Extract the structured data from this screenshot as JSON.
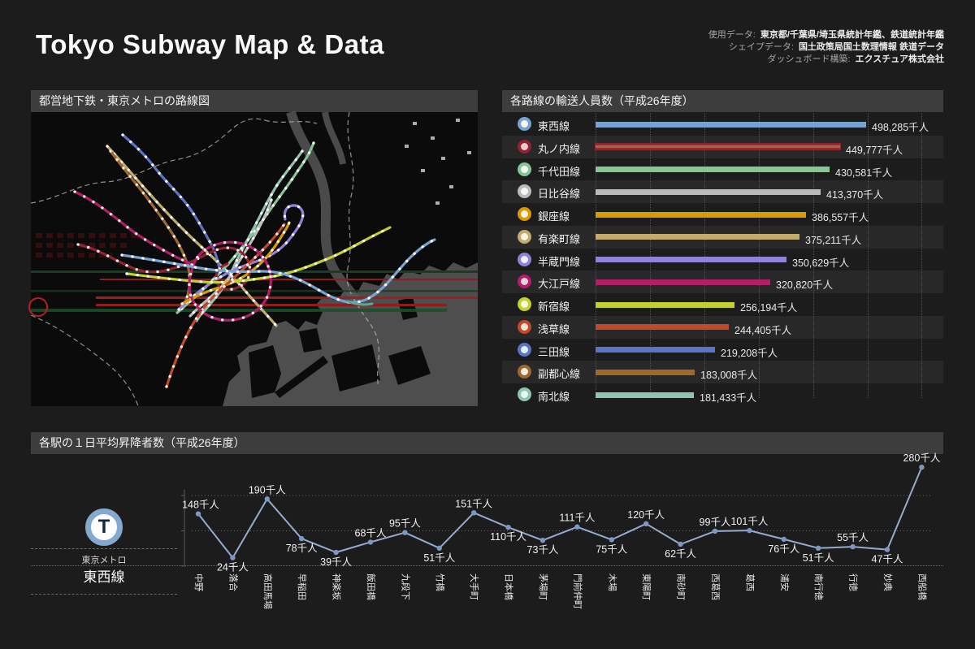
{
  "header": {
    "title": "Tokyo Subway Map & Data",
    "credits": [
      {
        "label": "使用データ:",
        "value": "東京都/千葉県/埼玉県統計年鑑、鉄道統計年鑑"
      },
      {
        "label": "シェイプデータ:",
        "value": "国土政策局国土数理情報 鉄道データ"
      },
      {
        "label": "ダッシュボード構築:",
        "value": "エクスチュア株式会社"
      }
    ]
  },
  "map_panel": {
    "title": "都営地下鉄・東京メトロの路線図"
  },
  "line_legend": {
    "symbol": "T",
    "operator": "東京メトロ",
    "line_name": "東西線",
    "ring_color": "#84a9cf"
  },
  "chart_data": [
    {
      "type": "bar",
      "title": "各路線の輸送人員数（平成26年度）",
      "unit": "千人",
      "categories": [
        "東西線",
        "丸ノ内線",
        "千代田線",
        "日比谷線",
        "銀座線",
        "有楽町線",
        "半蔵門線",
        "大江戸線",
        "新宿線",
        "浅草線",
        "三田線",
        "副都心線",
        "南北線"
      ],
      "values": [
        498285,
        449777,
        430581,
        413370,
        386557,
        375211,
        350629,
        320820,
        256194,
        244405,
        219208,
        183008,
        181433
      ],
      "colors": [
        "#76a3d1",
        "#8e2334",
        "#86c693",
        "#bcbcbc",
        "#d89c00",
        "#c2ab6b",
        "#9181dd",
        "#b01f68",
        "#c3d02e",
        "#c2492a",
        "#5b74c4",
        "#a0682e",
        "#8fc4b2"
      ],
      "badge_centers": [
        "#f7f4f1",
        "#ecc7cd",
        "#f2f7f2",
        "#f5f5f5",
        "#f7f0e2",
        "#f5f1e3",
        "#f0ecfa",
        "#ecd1dd",
        "#f4f7e3",
        "#f3e3d8",
        "#dff0fa",
        "#f5efe3",
        "#e8f5f0"
      ],
      "highlight": {
        "index": 1,
        "inner_color": "#a5673f"
      },
      "xlim": [
        0,
        650000
      ],
      "grid_interval": 100000,
      "grid_on": true,
      "legend_position": "left"
    },
    {
      "type": "line",
      "title": "各駅の１日平均昇降者数（平成26年度）",
      "unit": "千人",
      "series": [
        {
          "name": "東西線",
          "color": "#93acd0",
          "marker_color": "#7b97c4"
        }
      ],
      "categories": [
        "中野",
        "落合",
        "高田馬場",
        "早稲田",
        "神楽坂",
        "飯田橋",
        "九段下",
        "竹橋",
        "大手町",
        "日本橋",
        "茅場町",
        "門前仲町",
        "木場",
        "東陽町",
        "南砂町",
        "西葛西",
        "葛西",
        "浦安",
        "南行徳",
        "行徳",
        "妙典",
        "西船橋"
      ],
      "values": [
        148,
        24,
        190,
        78,
        39,
        68,
        95,
        51,
        151,
        110,
        73,
        111,
        75,
        120,
        62,
        99,
        101,
        76,
        51,
        55,
        47,
        280
      ],
      "ylim": [
        0,
        300
      ],
      "grid_interval": 100,
      "grid_on": true,
      "xlabel": "",
      "ylabel": ""
    }
  ]
}
